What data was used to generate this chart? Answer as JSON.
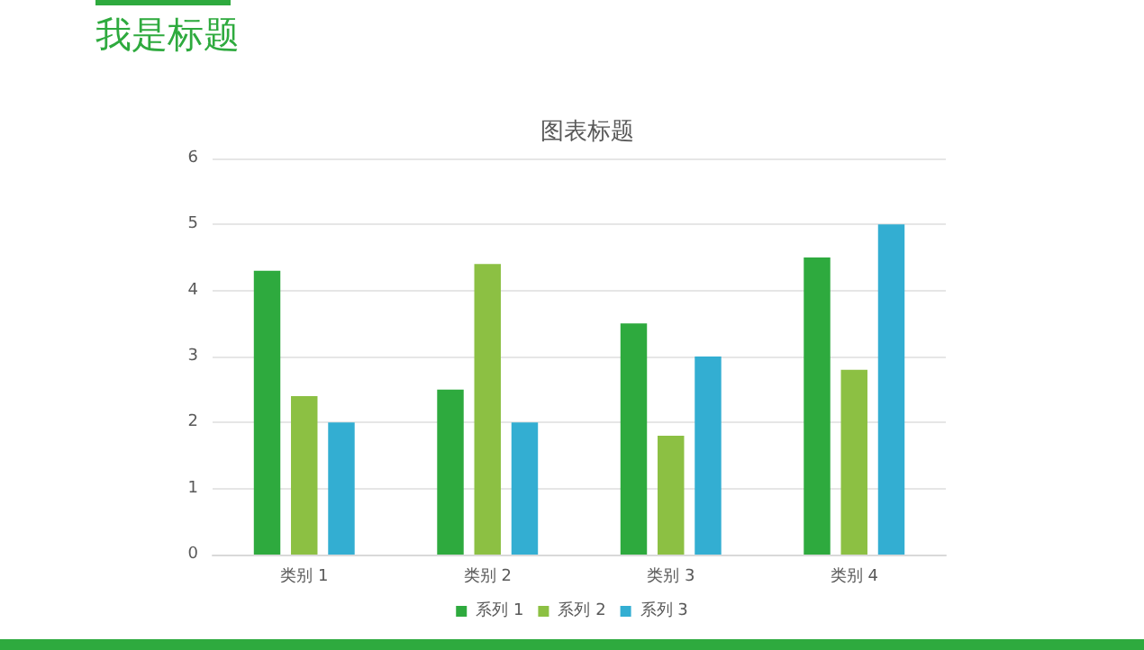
{
  "chart_data": {
    "type": "bar",
    "title": "我是标题",
    "subtitle": "图表标题",
    "categories": [
      "类别 1",
      "类别 2",
      "类别 3",
      "类别 4"
    ],
    "series": [
      {
        "name": "系列 1",
        "color": "#2eaa3e",
        "values": [
          4.3,
          2.5,
          3.5,
          4.5
        ]
      },
      {
        "name": "系列 2",
        "color": "#8cc043",
        "values": [
          2.4,
          4.4,
          1.8,
          2.8
        ]
      },
      {
        "name": "系列 3",
        "color": "#33aed2",
        "values": [
          2,
          2,
          3,
          5
        ]
      }
    ],
    "ylim": [
      0,
      6
    ],
    "yticks": [
      0,
      1,
      2,
      3,
      4,
      5,
      6
    ],
    "grid": "y",
    "legend": "bottom"
  }
}
